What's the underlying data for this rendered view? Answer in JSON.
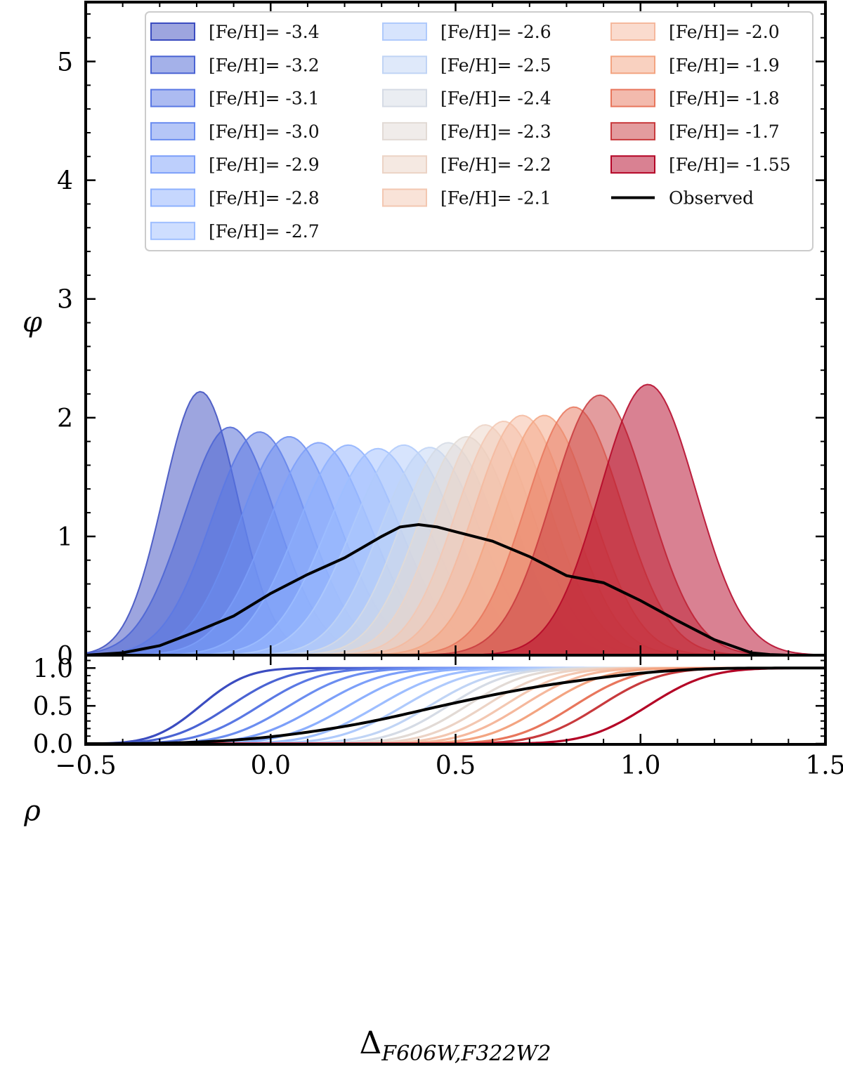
{
  "chart_data": [
    {
      "type": "area",
      "panel": "top",
      "title": "",
      "xlabel": "",
      "ylabel": "φ",
      "xlim": [
        -0.5,
        1.5
      ],
      "ylim": [
        0,
        5.5
      ],
      "yticks": [
        "0",
        "1",
        "2",
        "3",
        "4",
        "5"
      ],
      "legend_position": "top",
      "series": [
        {
          "name": "[Fe/H]= -3.4",
          "color": "#3b4cc0",
          "peak_x": -0.19,
          "peak_y": 2.22,
          "width": 0.1
        },
        {
          "name": "[Fe/H]= -3.2",
          "color": "#4a63d3",
          "peak_x": -0.11,
          "peak_y": 1.92,
          "width": 0.125
        },
        {
          "name": "[Fe/H]= -3.1",
          "color": "#5a78e4",
          "peak_x": -0.03,
          "peak_y": 1.88,
          "width": 0.13
        },
        {
          "name": "[Fe/H]= -3.0",
          "color": "#6b8df0",
          "peak_x": 0.05,
          "peak_y": 1.84,
          "width": 0.135
        },
        {
          "name": "[Fe/H]= -2.9",
          "color": "#7c9ff9",
          "peak_x": 0.13,
          "peak_y": 1.79,
          "width": 0.14
        },
        {
          "name": "[Fe/H]= -2.8",
          "color": "#8db0fe",
          "peak_x": 0.21,
          "peak_y": 1.77,
          "width": 0.14
        },
        {
          "name": "[Fe/H]= -2.7",
          "color": "#9ebeff",
          "peak_x": 0.29,
          "peak_y": 1.74,
          "width": 0.14
        },
        {
          "name": "[Fe/H]= -2.6",
          "color": "#afcafc",
          "peak_x": 0.36,
          "peak_y": 1.77,
          "width": 0.14
        },
        {
          "name": "[Fe/H]= -2.5",
          "color": "#c0d4f5",
          "peak_x": 0.43,
          "peak_y": 1.75,
          "width": 0.135
        },
        {
          "name": "[Fe/H]= -2.4",
          "color": "#d5dbe5",
          "peak_x": 0.48,
          "peak_y": 1.79,
          "width": 0.13
        },
        {
          "name": "[Fe/H]= -2.3",
          "color": "#e2dad5",
          "peak_x": 0.53,
          "peak_y": 1.84,
          "width": 0.13
        },
        {
          "name": "[Fe/H]= -2.2",
          "color": "#ecd3c5",
          "peak_x": 0.58,
          "peak_y": 1.94,
          "width": 0.13
        },
        {
          "name": "[Fe/H]= -2.1",
          "color": "#f3c7b1",
          "peak_x": 0.63,
          "peak_y": 1.97,
          "width": 0.13
        },
        {
          "name": "[Fe/H]= -2.0",
          "color": "#f5b89d",
          "peak_x": 0.68,
          "peak_y": 2.02,
          "width": 0.13
        },
        {
          "name": "[Fe/H]= -1.9",
          "color": "#f3a481",
          "peak_x": 0.74,
          "peak_y": 2.02,
          "width": 0.13
        },
        {
          "name": "[Fe/H]= -1.8",
          "color": "#e8765c",
          "peak_x": 0.82,
          "peak_y": 2.09,
          "width": 0.13
        },
        {
          "name": "[Fe/H]= -1.7",
          "color": "#c83a3d",
          "peak_x": 0.89,
          "peak_y": 2.19,
          "width": 0.13
        },
        {
          "name": "[Fe/H]= -1.55",
          "color": "#b40426",
          "peak_x": 1.02,
          "peak_y": 2.28,
          "width": 0.13
        }
      ],
      "observed": {
        "name": "Observed",
        "color": "#000000",
        "x": [
          -0.5,
          -0.4,
          -0.3,
          -0.2,
          -0.1,
          0.0,
          0.1,
          0.2,
          0.3,
          0.35,
          0.4,
          0.45,
          0.5,
          0.6,
          0.7,
          0.75,
          0.8,
          0.9,
          1.0,
          1.1,
          1.2,
          1.3,
          1.35,
          1.4,
          1.5
        ],
        "y": [
          0.0,
          0.02,
          0.08,
          0.2,
          0.33,
          0.52,
          0.68,
          0.82,
          1.0,
          1.08,
          1.1,
          1.08,
          1.04,
          0.96,
          0.83,
          0.75,
          0.67,
          0.61,
          0.46,
          0.29,
          0.13,
          0.02,
          0.005,
          0.0,
          0.0
        ]
      }
    },
    {
      "type": "line",
      "panel": "bottom",
      "title": "",
      "xlabel": "Δ",
      "xlabel_subscript": "F606W,F322W2",
      "ylabel": "ρ",
      "xlim": [
        -0.5,
        1.5
      ],
      "ylim": [
        0,
        1.17
      ],
      "xticks": [
        "−0.5",
        "0.0",
        "0.5",
        "1.0",
        "1.5"
      ],
      "yticks": [
        "0.0",
        "0.5",
        "1.0"
      ],
      "note": "Cumulative distributions of each [Fe/H] series (same colors as top panel) and of the observed distribution"
    }
  ],
  "legend": {
    "columns": [
      [
        "[Fe/H]= -3.4",
        "[Fe/H]= -3.2",
        "[Fe/H]= -3.1",
        "[Fe/H]= -3.0",
        "[Fe/H]= -2.9",
        "[Fe/H]= -2.8",
        "[Fe/H]= -2.7"
      ],
      [
        "[Fe/H]= -2.6",
        "[Fe/H]= -2.5",
        "[Fe/H]= -2.4",
        "[Fe/H]= -2.3",
        "[Fe/H]= -2.2",
        "[Fe/H]= -2.1"
      ],
      [
        "[Fe/H]= -2.0",
        "[Fe/H]= -1.9",
        "[Fe/H]= -1.8",
        "[Fe/H]= -1.7",
        "[Fe/H]= -1.55",
        "Observed"
      ]
    ]
  }
}
